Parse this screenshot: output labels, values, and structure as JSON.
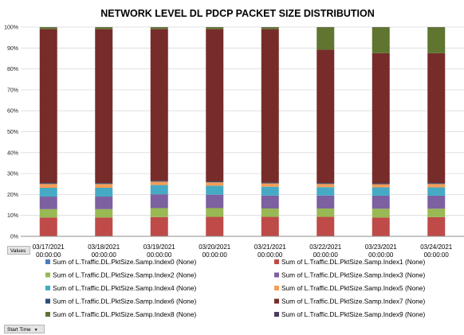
{
  "buttons": {
    "values_label": "Values",
    "start_time_label": "Start Time",
    "dropdown_icon": "chevron-down-icon"
  },
  "chart_data": {
    "type": "bar",
    "stacked": "percent",
    "title": "NETWORK LEVEL DL PDCP PACKET SIZE DISTRIBUTION",
    "xlabel": "",
    "ylabel": "",
    "ylim": [
      0,
      100
    ],
    "yticks": [
      "0%",
      "10%",
      "20%",
      "30%",
      "40%",
      "50%",
      "60%",
      "70%",
      "80%",
      "90%",
      "100%"
    ],
    "grid": true,
    "legend_position": "bottom",
    "categories": [
      [
        "03/17/2021",
        "00:00:00"
      ],
      [
        "03/18/2021",
        "00:00:00"
      ],
      [
        "03/19/2021",
        "00:00:00"
      ],
      [
        "03/20/2021",
        "00:00:00"
      ],
      [
        "03/21/2021",
        "00:00:00"
      ],
      [
        "03/22/2021",
        "00:00:00"
      ],
      [
        "03/23/2021",
        "00:00:00"
      ],
      [
        "03/24/2021",
        "00:00:00"
      ]
    ],
    "series": [
      {
        "name": "Sum of L.Traffic.DL.PktSize.Samp.Index0 (None)",
        "color": "#4a7ebb",
        "values": [
          0.2,
          0.2,
          0.2,
          0.2,
          0.2,
          0.2,
          0.2,
          0.2
        ]
      },
      {
        "name": "Sum of L.Traffic.DL.PktSize.Samp.Index1 (None)",
        "color": "#be4b48",
        "values": [
          8.8,
          8.8,
          9.0,
          9.1,
          9.1,
          9.1,
          8.8,
          9.0
        ]
      },
      {
        "name": "Sum of L.Traffic.DL.PktSize.Samp.Index2 (None)",
        "color": "#98b954",
        "values": [
          4.0,
          4.0,
          4.3,
          4.2,
          4.0,
          4.0,
          4.2,
          4.0
        ]
      },
      {
        "name": "Sum of L.Traffic.DL.PktSize.Samp.Index3 (None)",
        "color": "#7d60a0",
        "values": [
          6.0,
          6.0,
          6.6,
          6.4,
          6.2,
          6.2,
          6.2,
          6.2
        ]
      },
      {
        "name": "Sum of L.Traffic.DL.PktSize.Samp.Index4 (None)",
        "color": "#46aac5",
        "values": [
          4.2,
          4.2,
          4.4,
          4.3,
          4.2,
          4.0,
          4.0,
          4.0
        ]
      },
      {
        "name": "Sum of L.Traffic.DL.PktSize.Samp.Index5 (None)",
        "color": "#f59d56",
        "values": [
          1.8,
          1.8,
          1.6,
          1.6,
          1.6,
          1.5,
          1.5,
          1.6
        ]
      },
      {
        "name": "Sum of L.Traffic.DL.PktSize.Samp.Index6 (None)",
        "color": "#2c4d75",
        "values": [
          0.4,
          0.4,
          0.4,
          0.4,
          0.4,
          0.4,
          0.4,
          0.4
        ]
      },
      {
        "name": "Sum of L.Traffic.DL.PktSize.Samp.Index7 (None)",
        "color": "#772c2a",
        "values": [
          73.6,
          73.6,
          72.5,
          72.8,
          73.3,
          63.8,
          62.2,
          62.1
        ]
      },
      {
        "name": "Sum of L.Traffic.DL.PktSize.Samp.Index8 (None)",
        "color": "#5f7530",
        "values": [
          0.9,
          0.9,
          0.9,
          0.9,
          0.9,
          10.7,
          12.4,
          12.4
        ]
      },
      {
        "name": "Sum of L.Traffic.DL.PktSize.Samp.Index9 (None)",
        "color": "#4d3b62",
        "values": [
          0.1,
          0.1,
          0.1,
          0.1,
          0.1,
          0.1,
          0.1,
          0.1
        ]
      }
    ]
  }
}
